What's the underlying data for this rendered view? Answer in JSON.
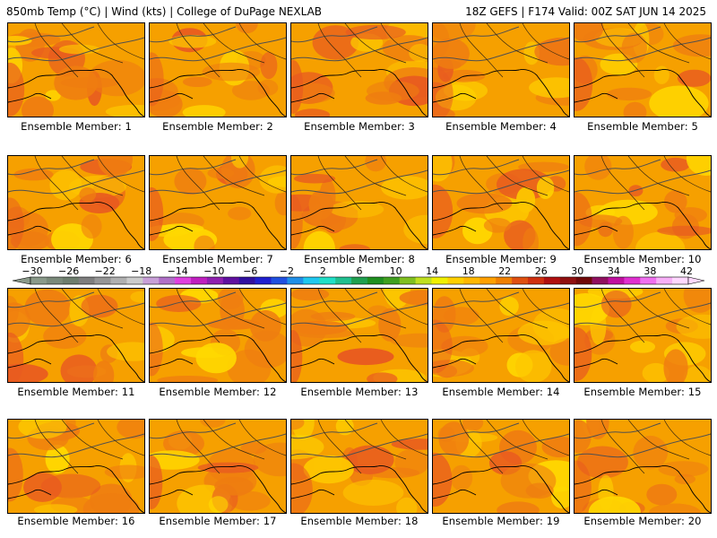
{
  "header": {
    "left_title": "850mb Temp (°C) | Wind (kts) | College of DuPage NEXLAB",
    "right_title": "18Z GEFS | F174 Valid: 00Z SAT JUN 14 2025"
  },
  "colorbar": {
    "labels": [
      "−30",
      "−26",
      "−22",
      "−18",
      "−14",
      "−10",
      "−6",
      "−2",
      "2",
      "6",
      "10",
      "14",
      "18",
      "22",
      "26",
      "30",
      "34",
      "38",
      "42"
    ],
    "colors": [
      "#8a9a8a",
      "#7a8a7a",
      "#6e7e6e",
      "#7e7e7e",
      "#969696",
      "#b0b0b0",
      "#cccccc",
      "#c8a0d8",
      "#b070c8",
      "#e040e0",
      "#c020c0",
      "#9020b0",
      "#6010a0",
      "#3010a0",
      "#2020d0",
      "#2050e0",
      "#2090e8",
      "#20c8f0",
      "#20e0c8",
      "#20c090",
      "#20a050",
      "#209020",
      "#40a020",
      "#80c020",
      "#c0e020",
      "#f0f000",
      "#ffd000",
      "#ffb800",
      "#ffa000",
      "#f08000",
      "#e05010",
      "#d03010",
      "#b01010",
      "#901010",
      "#700808",
      "#901060",
      "#c010a0",
      "#e030d0",
      "#f070f0",
      "#f8b0f8",
      "#ffd8ff"
    ]
  },
  "panels": [
    {
      "label": "Ensemble Member: 1"
    },
    {
      "label": "Ensemble Member: 2"
    },
    {
      "label": "Ensemble Member: 3"
    },
    {
      "label": "Ensemble Member: 4"
    },
    {
      "label": "Ensemble Member: 5"
    },
    {
      "label": "Ensemble Member: 6"
    },
    {
      "label": "Ensemble Member: 7"
    },
    {
      "label": "Ensemble Member: 8"
    },
    {
      "label": "Ensemble Member: 9"
    },
    {
      "label": "Ensemble Member: 10"
    },
    {
      "label": "Ensemble Member: 11"
    },
    {
      "label": "Ensemble Member: 12"
    },
    {
      "label": "Ensemble Member: 13"
    },
    {
      "label": "Ensemble Member: 14"
    },
    {
      "label": "Ensemble Member: 15"
    },
    {
      "label": "Ensemble Member: 16"
    },
    {
      "label": "Ensemble Member: 17"
    },
    {
      "label": "Ensemble Member: 18"
    },
    {
      "label": "Ensemble Member: 19"
    },
    {
      "label": "Ensemble Member: 20"
    }
  ],
  "palette": {
    "base": "#f6a000",
    "warm": "#ef7d10",
    "hot": "#e85a20",
    "cool": "#fdc600",
    "cooler": "#ffd800",
    "coastline": "#000000",
    "contour": "#505050"
  }
}
